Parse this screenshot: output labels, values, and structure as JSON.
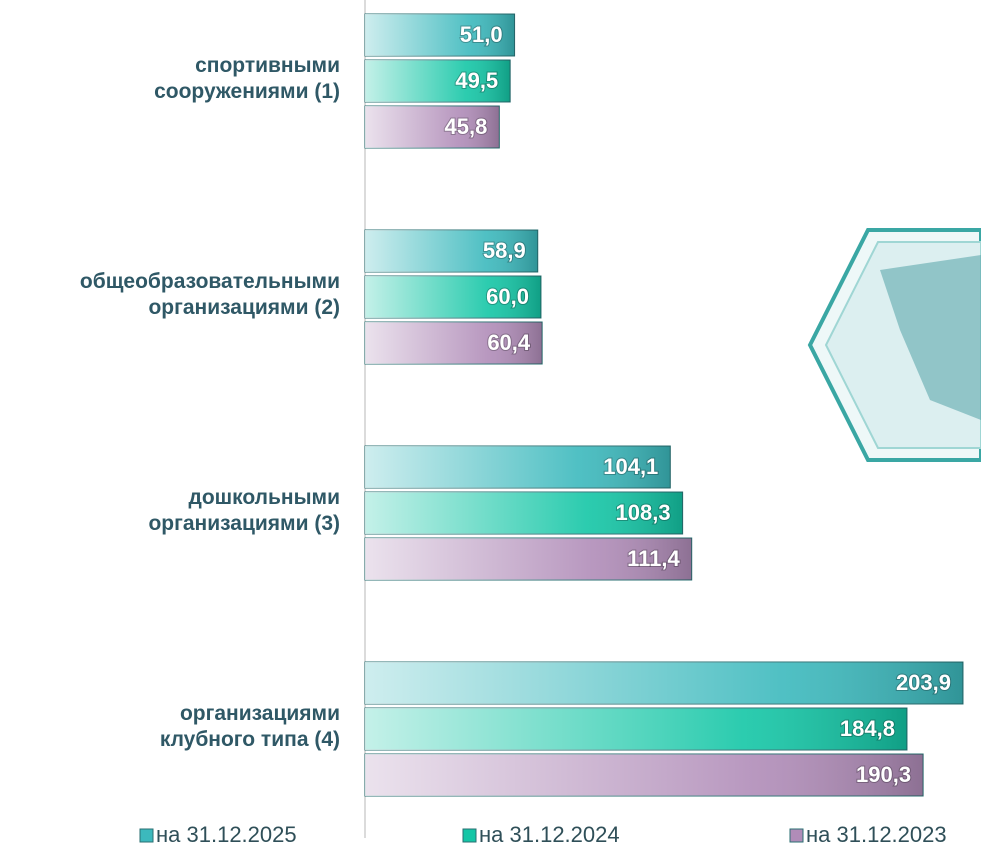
{
  "chart_data": {
    "type": "bar",
    "orientation": "horizontal",
    "categories": [
      "спортивными\nсооружениями (1)",
      "общеобразовательными\nорганизациями (2)",
      "дошкольными\nорганизациями (3)",
      "организациями\nклубного типа (4)"
    ],
    "series": [
      {
        "name": "на 31.12.2025",
        "color": "#3cb9bd",
        "values": [
          51.0,
          58.9,
          104.1,
          203.9
        ],
        "value_labels": [
          "51,0",
          "58,9",
          "104,1",
          "203,9"
        ]
      },
      {
        "name": "на 31.12.2024",
        "color": "#14c6a6",
        "values": [
          49.5,
          60.0,
          108.3,
          184.8
        ],
        "value_labels": [
          "49,5",
          "60,0",
          "108,3",
          "184,8"
        ]
      },
      {
        "name": "на 31.12.2023",
        "color": "#b08cb8",
        "values": [
          45.8,
          60.4,
          111.4,
          190.3
        ],
        "value_labels": [
          "45,8",
          "60,4",
          "111,4",
          "190,3"
        ]
      }
    ]
  }
}
